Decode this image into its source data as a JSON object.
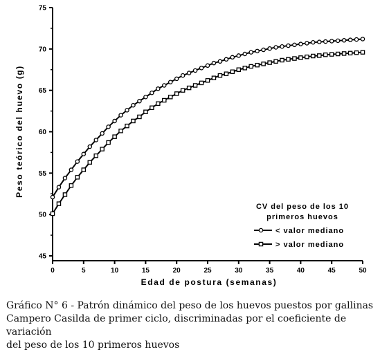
{
  "chart_data": {
    "type": "line",
    "xlabel": "Edad de postura (semanas)",
    "ylabel": "Peso teórico del huevo (g)",
    "xlim": [
      0,
      50
    ],
    "ylim": [
      45,
      75
    ],
    "xticks": [
      0,
      5,
      10,
      15,
      20,
      25,
      30,
      35,
      40,
      45,
      50
    ],
    "yticks": [
      45,
      50,
      55,
      60,
      65,
      70,
      75
    ],
    "grid": false,
    "legend": {
      "title": "CV del peso de los 10\nprimeros huevos",
      "placement": "bottom-right"
    },
    "series": [
      {
        "name": "< valor mediano",
        "marker": "circle",
        "x": [
          0,
          1,
          2,
          3,
          4,
          5,
          6,
          7,
          8,
          9,
          10,
          11,
          12,
          13,
          14,
          15,
          16,
          17,
          18,
          19,
          20,
          21,
          22,
          23,
          24,
          25,
          26,
          27,
          28,
          29,
          30,
          31,
          32,
          33,
          34,
          35,
          36,
          37,
          38,
          39,
          40,
          41,
          42,
          43,
          44,
          45,
          46,
          47,
          48,
          49,
          50
        ],
        "y": [
          52.1,
          53.3,
          54.4,
          55.4,
          56.4,
          57.3,
          58.2,
          59.0,
          59.8,
          60.6,
          61.3,
          62.0,
          62.6,
          63.2,
          63.7,
          64.2,
          64.7,
          65.2,
          65.6,
          66.0,
          66.4,
          66.8,
          67.1,
          67.4,
          67.7,
          68.0,
          68.3,
          68.5,
          68.75,
          69.0,
          69.2,
          69.4,
          69.6,
          69.75,
          69.9,
          70.05,
          70.2,
          70.3,
          70.4,
          70.5,
          70.6,
          70.7,
          70.8,
          70.85,
          70.9,
          70.95,
          71.0,
          71.05,
          71.1,
          71.15,
          71.2
        ]
      },
      {
        "name": "> valor mediano",
        "marker": "square",
        "x": [
          0,
          1,
          2,
          3,
          4,
          5,
          6,
          7,
          8,
          9,
          10,
          11,
          12,
          13,
          14,
          15,
          16,
          17,
          18,
          19,
          20,
          21,
          22,
          23,
          24,
          25,
          26,
          27,
          28,
          29,
          30,
          31,
          32,
          33,
          34,
          35,
          36,
          37,
          38,
          39,
          40,
          41,
          42,
          43,
          44,
          45,
          46,
          47,
          48,
          49,
          50
        ],
        "y": [
          50.1,
          51.3,
          52.4,
          53.5,
          54.5,
          55.4,
          56.3,
          57.1,
          57.9,
          58.7,
          59.4,
          60.1,
          60.7,
          61.3,
          61.8,
          62.4,
          62.9,
          63.4,
          63.8,
          64.2,
          64.6,
          65.0,
          65.3,
          65.6,
          65.9,
          66.2,
          66.5,
          66.8,
          67.0,
          67.25,
          67.5,
          67.7,
          67.9,
          68.05,
          68.2,
          68.35,
          68.5,
          68.65,
          68.75,
          68.85,
          68.95,
          69.05,
          69.15,
          69.2,
          69.3,
          69.35,
          69.4,
          69.45,
          69.5,
          69.55,
          69.6
        ]
      }
    ]
  },
  "caption": "Gráfico N° 6 -  Patrón dinámico del peso de los huevos puestos por gallinas\nCampero Casilda de primer ciclo, discriminadas por el coeficiente de variación\ndel peso de los 10 primeros huevos"
}
